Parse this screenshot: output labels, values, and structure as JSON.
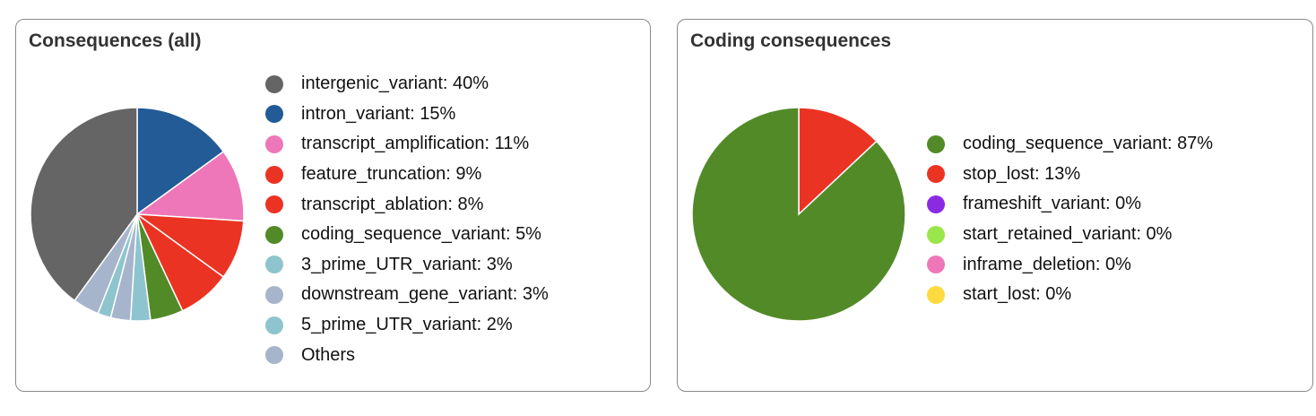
{
  "chart_data": [
    {
      "type": "pie",
      "title": "Consequences (all)",
      "slices": [
        {
          "label": "intron_variant: 15%",
          "value": 15,
          "color": "#225b96"
        },
        {
          "label": "transcript_amplification: 11%",
          "value": 11,
          "color": "#ee77b9"
        },
        {
          "label": "feature_truncation: 9%",
          "value": 9,
          "color": "#eb3324"
        },
        {
          "label": "transcript_ablation: 8%",
          "value": 8,
          "color": "#eb3324"
        },
        {
          "label": "coding_sequence_variant: 5%",
          "value": 5,
          "color": "#528a28"
        },
        {
          "label": "3_prime_UTR_variant: 3%",
          "value": 3,
          "color": "#8ec4cd"
        },
        {
          "label": "downstream_gene_variant: 3%",
          "value": 3,
          "color": "#a6b4cc"
        },
        {
          "label": "5_prime_UTR_variant: 2%",
          "value": 2,
          "color": "#8ec4cd"
        },
        {
          "label": "Others",
          "value": 4,
          "color": "#a6b4cc"
        },
        {
          "label": "intergenic_variant: 40%",
          "value": 40,
          "color": "#656565"
        }
      ],
      "legend": [
        {
          "label": "intergenic_variant: 40%",
          "color": "#656565"
        },
        {
          "label": "intron_variant: 15%",
          "color": "#225b96"
        },
        {
          "label": "transcript_amplification: 11%",
          "color": "#ee77b9"
        },
        {
          "label": "feature_truncation: 9%",
          "color": "#eb3324"
        },
        {
          "label": "transcript_ablation: 8%",
          "color": "#eb3324"
        },
        {
          "label": "coding_sequence_variant: 5%",
          "color": "#528a28"
        },
        {
          "label": "3_prime_UTR_variant: 3%",
          "color": "#8ec4cd"
        },
        {
          "label": "downstream_gene_variant: 3%",
          "color": "#a6b4cc"
        },
        {
          "label": "5_prime_UTR_variant: 2%",
          "color": "#8ec4cd"
        },
        {
          "label": "Others",
          "color": "#a6b4cc"
        }
      ],
      "legend_position": "right"
    },
    {
      "type": "pie",
      "title": "Coding consequences",
      "slices": [
        {
          "label": "stop_lost: 13%",
          "value": 13,
          "color": "#eb3324"
        },
        {
          "label": "coding_sequence_variant: 87%",
          "value": 87,
          "color": "#528a28"
        }
      ],
      "legend": [
        {
          "label": "coding_sequence_variant: 87%",
          "color": "#528a28"
        },
        {
          "label": "stop_lost: 13%",
          "color": "#eb3324"
        },
        {
          "label": "frameshift_variant: 0%",
          "color": "#8a2be2"
        },
        {
          "label": "start_retained_variant: 0%",
          "color": "#99e64a"
        },
        {
          "label": "inframe_deletion: 0%",
          "color": "#ee77b9"
        },
        {
          "label": "start_lost: 0%",
          "color": "#fddb40"
        }
      ],
      "legend_position": "right"
    }
  ]
}
